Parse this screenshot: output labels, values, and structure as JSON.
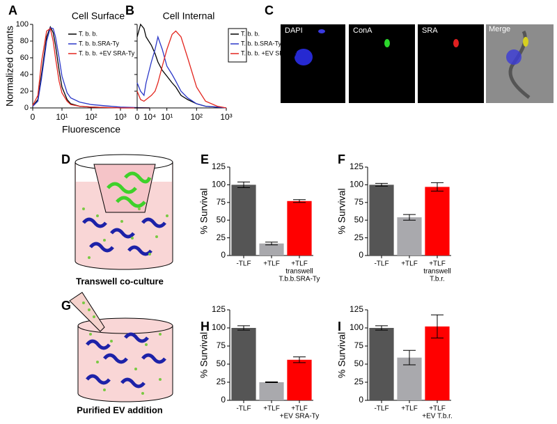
{
  "chart_data": [
    {
      "type": "line",
      "label": "A",
      "title": "Cell Surface",
      "ylabel": "Normalized counts",
      "xlabel": "Fluorescence",
      "xscale": "log",
      "xlim": [
        1,
        10000
      ],
      "xticks": [
        {
          "value": 1,
          "label": "0"
        },
        {
          "value": 10,
          "label": "10¹"
        },
        {
          "value": 100,
          "label": "10²"
        },
        {
          "value": 1000,
          "label": "10³"
        },
        {
          "value": 10000,
          "label": "10⁴"
        }
      ],
      "ylim": [
        0,
        100
      ],
      "yticks": [
        0,
        20,
        40,
        60,
        80,
        100
      ],
      "ytick_labels": true,
      "legend": "upper right",
      "legend_box": false,
      "x": [
        1,
        1.5,
        2,
        3,
        4,
        5,
        6,
        8,
        10,
        15,
        20,
        40,
        100,
        1000,
        10000
      ],
      "series": [
        {
          "name": "T. b. b.",
          "color": "#000000",
          "values": [
            2,
            10,
            40,
            85,
            97,
            90,
            75,
            45,
            25,
            10,
            5,
            2,
            1,
            0,
            0
          ]
        },
        {
          "name": "T. b. b.SRA-Ty",
          "color": "#2a37c8",
          "values": [
            2,
            8,
            35,
            80,
            96,
            95,
            85,
            60,
            38,
            18,
            12,
            7,
            4,
            1,
            0
          ]
        },
        {
          "name": "T. b. b. +EV SRA-Ty",
          "color": "#e3261f",
          "values": [
            3,
            15,
            55,
            92,
            95,
            80,
            60,
            32,
            18,
            8,
            4,
            2,
            1,
            0,
            0
          ]
        }
      ]
    },
    {
      "type": "line",
      "label": "B",
      "title": "Cell Internal",
      "xscale": "log",
      "xlim": [
        1,
        1000
      ],
      "xticks": [
        {
          "value": 1,
          "label": "0"
        },
        {
          "value": 10,
          "label": "10¹"
        },
        {
          "value": 100,
          "label": "10²"
        },
        {
          "value": 1000,
          "label": "10³"
        }
      ],
      "ylim": [
        0,
        100
      ],
      "yticks": [
        0,
        20,
        40,
        60,
        80,
        100
      ],
      "ytick_labels": false,
      "legend": "right",
      "legend_box": true,
      "x": [
        1,
        1.3,
        1.7,
        2,
        3,
        4,
        5,
        7,
        10,
        15,
        20,
        30,
        50,
        100,
        200,
        500,
        1000
      ],
      "series": [
        {
          "name": "T. b. b.",
          "color": "#000000",
          "values": [
            85,
            100,
            95,
            85,
            75,
            65,
            55,
            45,
            38,
            30,
            25,
            15,
            10,
            5,
            2,
            1,
            0
          ]
        },
        {
          "name": "T. b. b.SRA-Ty",
          "color": "#2a37c8",
          "values": [
            30,
            20,
            15,
            30,
            55,
            70,
            85,
            70,
            50,
            40,
            32,
            20,
            12,
            5,
            2,
            1,
            0
          ]
        },
        {
          "name": "T. b. b. +EV SRA-Ty",
          "color": "#e3261f",
          "values": [
            20,
            10,
            8,
            10,
            15,
            20,
            30,
            50,
            70,
            88,
            92,
            85,
            60,
            25,
            8,
            2,
            0
          ]
        }
      ]
    },
    {
      "type": "bar",
      "label": "E",
      "ylabel": "% Survival",
      "ylim": [
        0,
        125
      ],
      "yticks": [
        0,
        25,
        50,
        75,
        100,
        125
      ],
      "categories": [
        [
          "-TLF"
        ],
        [
          "+TLF"
        ],
        [
          "+TLF",
          "transwell",
          "T.b.b.SRA-Ty"
        ]
      ],
      "values": [
        100,
        17,
        77
      ],
      "errors": [
        4,
        2,
        2
      ],
      "colors": [
        "#555555",
        "#a9a9ad",
        "#ff0000"
      ]
    },
    {
      "type": "bar",
      "label": "F",
      "ylabel": "% Survival",
      "ylim": [
        0,
        125
      ],
      "yticks": [
        0,
        25,
        50,
        75,
        100,
        125
      ],
      "categories": [
        [
          "-TLF"
        ],
        [
          "+TLF"
        ],
        [
          "+TLF",
          "transwell",
          "T.b.r."
        ]
      ],
      "values": [
        100,
        54,
        97
      ],
      "errors": [
        2,
        4,
        6
      ],
      "colors": [
        "#555555",
        "#a9a9ad",
        "#ff0000"
      ]
    },
    {
      "type": "bar",
      "label": "H",
      "ylabel": "% Survival",
      "ylim": [
        0,
        125
      ],
      "yticks": [
        0,
        25,
        50,
        75,
        100,
        125
      ],
      "categories": [
        [
          "-TLF"
        ],
        [
          "+TLF"
        ],
        [
          "+TLF",
          "+EV SRA-Ty"
        ]
      ],
      "values": [
        100,
        25,
        56
      ],
      "errors": [
        3,
        0.5,
        4
      ],
      "colors": [
        "#555555",
        "#a9a9ad",
        "#ff0000"
      ]
    },
    {
      "type": "bar",
      "label": "I",
      "ylabel": "% Survival",
      "ylim": [
        0,
        125
      ],
      "yticks": [
        0,
        25,
        50,
        75,
        100,
        125
      ],
      "categories": [
        [
          "-TLF"
        ],
        [
          "+TLF"
        ],
        [
          "+TLF",
          "+EV T.b.r."
        ]
      ],
      "values": [
        100,
        59,
        102
      ],
      "errors": [
        3,
        10,
        16
      ],
      "colors": [
        "#555555",
        "#a9a9ad",
        "#ff0000"
      ]
    }
  ],
  "microscopy": {
    "label": "C",
    "channels": [
      "DAPI",
      "ConA",
      "SRA",
      "Merge"
    ]
  },
  "diagrams": [
    {
      "label": "D",
      "caption": "Transwell co-culture"
    },
    {
      "label": "G",
      "caption": "Purified EV addition"
    }
  ]
}
